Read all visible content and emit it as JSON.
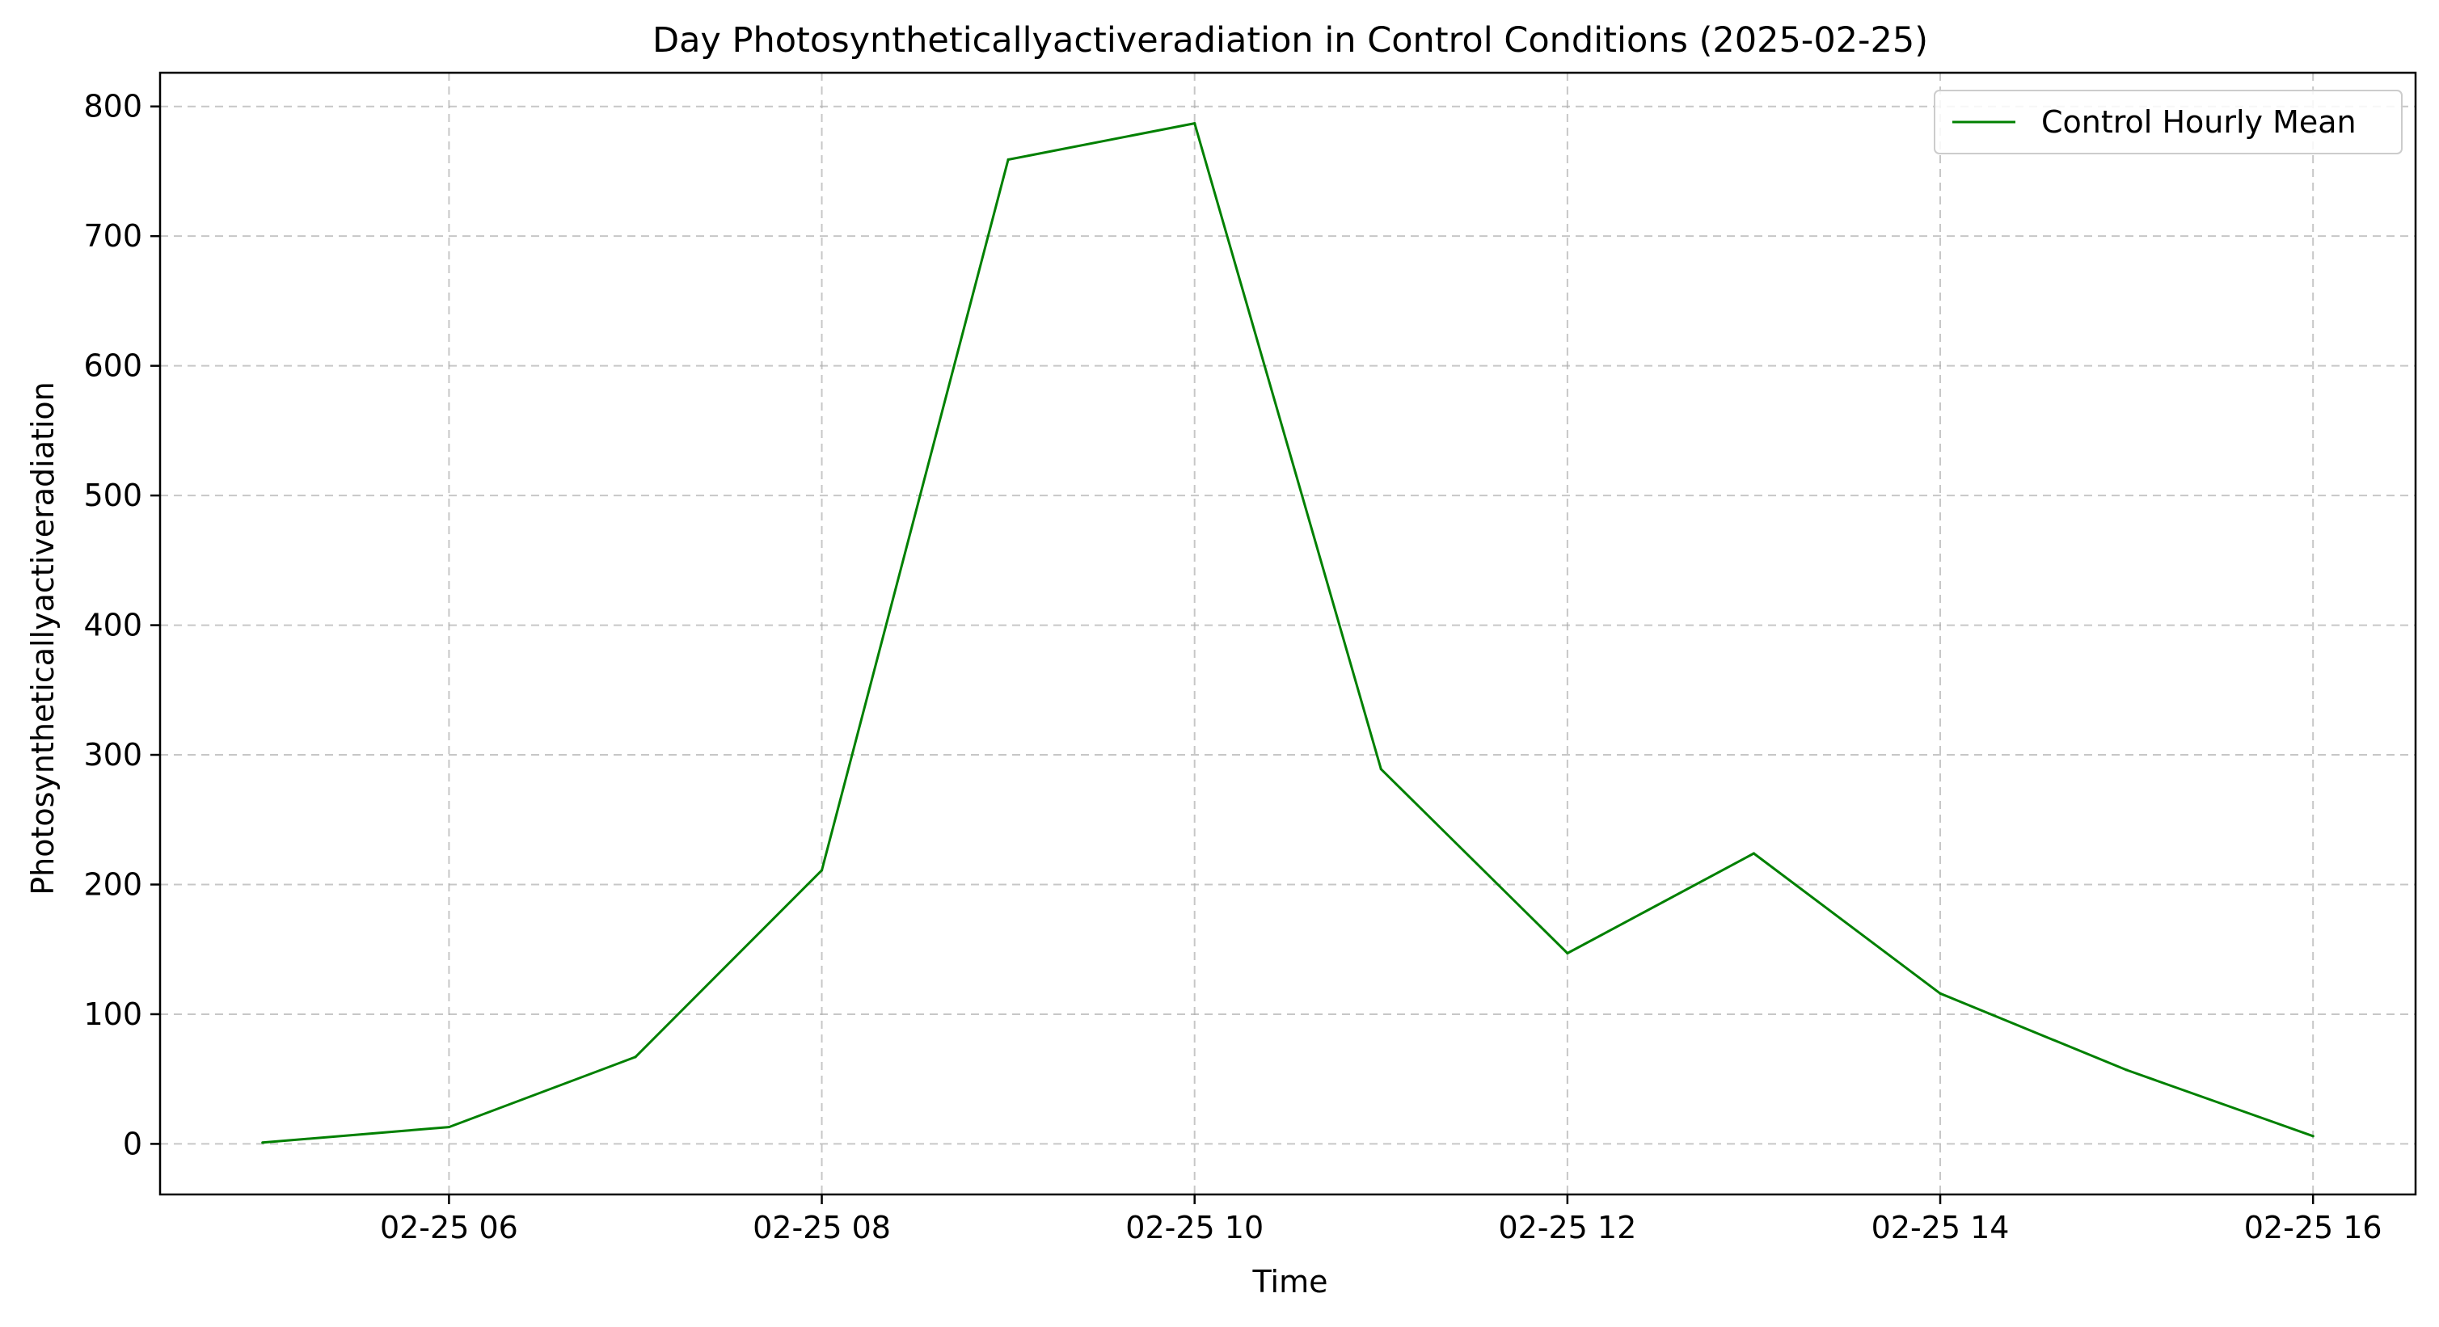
{
  "chart_data": {
    "type": "line",
    "title": "Day Photosyntheticallyactiveradiation in Control Conditions (2025-02-25)",
    "xlabel": "Time",
    "ylabel": "Photosyntheticallyactiveradiation",
    "grid": true,
    "legend_position": "top-right",
    "x_ticks": [
      "02-25 06",
      "02-25 08",
      "02-25 10",
      "02-25 12",
      "02-25 14",
      "02-25 16"
    ],
    "x_tick_hours": [
      6,
      8,
      10,
      12,
      14,
      16
    ],
    "y_ticks": [
      0,
      100,
      200,
      300,
      400,
      500,
      600,
      700,
      800
    ],
    "xlim_hours": [
      4.45,
      16.55
    ],
    "ylim": [
      -39,
      826
    ],
    "series": [
      {
        "name": "Control Hourly Mean",
        "color": "#008000",
        "x_hours": [
          5,
          6,
          7,
          8,
          9,
          10,
          11,
          12,
          13,
          14,
          15,
          16
        ],
        "values": [
          1,
          13,
          67,
          211,
          759,
          787,
          289,
          147,
          224,
          116,
          57,
          6
        ]
      }
    ]
  }
}
